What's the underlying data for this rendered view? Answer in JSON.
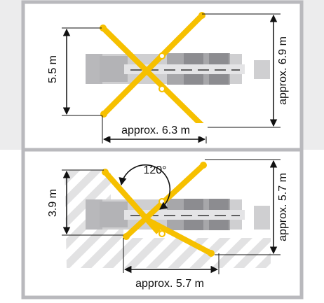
{
  "colors": {
    "frame": "#b9b9bd",
    "background_band": "#ececed",
    "outrigger": "#f6c000",
    "hatch": "#e2e2e3",
    "truck_light": "#cfcfd1",
    "truck_mid": "#b3b3b6",
    "truck_dark": "#8c8c90",
    "dimension_line": "#111111"
  },
  "icons": [
    "rotation-arrow-icon",
    "dimension-arrow-icon",
    "outrigger-pivot-icon"
  ],
  "diagrams": [
    {
      "mode": "full outrigger spread",
      "length_label": "5.5 m",
      "width_label": "approx. 6.3 m",
      "side_label": "approx. 6.9 m"
    },
    {
      "mode": "reduced one-side outrigger spread",
      "rotation_label": "120°",
      "length_label": "3.9 m",
      "width_label": "approx. 5.7 m",
      "side_label": "approx. 5.7 m"
    }
  ]
}
